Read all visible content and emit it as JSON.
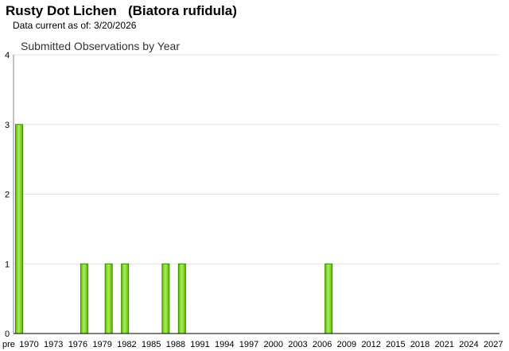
{
  "page": {
    "title": "Rusty Dot Lichen   (Biatora rufidula)",
    "subtitle": "Data current as of: 3/20/2026"
  },
  "chart_data": {
    "type": "bar",
    "title": "Submitted Observations by Year",
    "xlabel": "",
    "ylabel": "",
    "ylim": [
      0,
      4
    ],
    "yticks": [
      0,
      1,
      2,
      3,
      4
    ],
    "xlim": [
      "pre 1970",
      "2027"
    ],
    "x_tick_labels": [
      "pre",
      "1970",
      "1973",
      "1976",
      "1979",
      "1982",
      "1985",
      "1988",
      "1991",
      "1994",
      "1997",
      "2000",
      "2003",
      "2006",
      "2009",
      "2012",
      "2015",
      "2018",
      "2021",
      "2024",
      "2027"
    ],
    "categories": [
      "pre 1970",
      "1977",
      "1980",
      "1982",
      "1987",
      "1989",
      "2007"
    ],
    "values": [
      3,
      1,
      1,
      1,
      1,
      1,
      1
    ],
    "grid": true,
    "bar_color": "#7ed321",
    "bar_edge_color": "#3d8a00"
  }
}
